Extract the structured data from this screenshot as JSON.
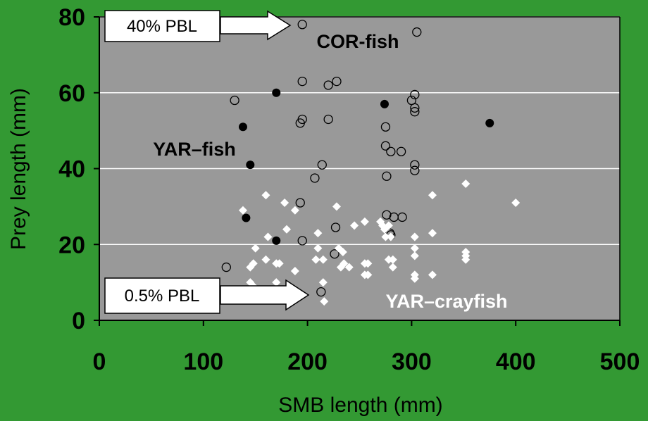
{
  "chart_data": {
    "type": "scatter",
    "xlabel": "SMB length (mm)",
    "ylabel": "Prey length (mm)",
    "xlim": [
      0,
      500
    ],
    "ylim": [
      0,
      80
    ],
    "xticks": [
      "0",
      "100",
      "200",
      "300",
      "400",
      "500"
    ],
    "yticks": [
      "0",
      "20",
      "40",
      "60",
      "80"
    ],
    "grid": true,
    "colors": {
      "figure_background": "#339933",
      "plot_background": "#999999",
      "gridline": "#ffffff",
      "axis": "#000000",
      "open_marker": "#000000",
      "filled_marker": "#000000",
      "diamond_marker": "#ffffff",
      "label_yar_crayfish": "#ffffff"
    },
    "annotations": {
      "cor_fish": "COR-fish",
      "yar_fish": "YAR–fish",
      "yar_crayfish": "YAR–crayfish",
      "pbl_40": "40% PBL",
      "pbl_05": "0.5% PBL"
    },
    "series": [
      {
        "marker": "open-circle",
        "points": [
          [
            195,
            78
          ],
          [
            305,
            76
          ],
          [
            130,
            58
          ],
          [
            195,
            63
          ],
          [
            228,
            63
          ],
          [
            220,
            62
          ],
          [
            195,
            53
          ],
          [
            193,
            52
          ],
          [
            220,
            53
          ],
          [
            300,
            58
          ],
          [
            303,
            59.5
          ],
          [
            303,
            56
          ],
          [
            303,
            55
          ],
          [
            275,
            51
          ],
          [
            275,
            46
          ],
          [
            280,
            44.5
          ],
          [
            290,
            44.5
          ],
          [
            303,
            41
          ],
          [
            303,
            39.5
          ],
          [
            214,
            41
          ],
          [
            207,
            37.5
          ],
          [
            276,
            38
          ],
          [
            193,
            31
          ],
          [
            276,
            27.8
          ],
          [
            283,
            27.2
          ],
          [
            291,
            27.2
          ],
          [
            227,
            24.5
          ],
          [
            279,
            23
          ],
          [
            280,
            22.5
          ],
          [
            195,
            21
          ],
          [
            226,
            17.5
          ],
          [
            122,
            14
          ],
          [
            213,
            7.5
          ]
        ]
      },
      {
        "marker": "filled-circle",
        "points": [
          [
            170,
            60
          ],
          [
            274,
            57
          ],
          [
            375,
            52
          ],
          [
            138,
            51
          ],
          [
            145,
            41
          ],
          [
            141,
            27
          ],
          [
            170,
            21
          ]
        ]
      },
      {
        "marker": "diamond",
        "points": [
          [
            160,
            33
          ],
          [
            320,
            33
          ],
          [
            352,
            36
          ],
          [
            400,
            31
          ],
          [
            138,
            29
          ],
          [
            178,
            31
          ],
          [
            188,
            29
          ],
          [
            228,
            30
          ],
          [
            270,
            26
          ],
          [
            272,
            25
          ],
          [
            274,
            24
          ],
          [
            255,
            26
          ],
          [
            245,
            25
          ],
          [
            278,
            25
          ],
          [
            280,
            22
          ],
          [
            275,
            22
          ],
          [
            303,
            22
          ],
          [
            320,
            23
          ],
          [
            180,
            24
          ],
          [
            162,
            22
          ],
          [
            210,
            23
          ],
          [
            150,
            19
          ],
          [
            210,
            19
          ],
          [
            230,
            19
          ],
          [
            234,
            18
          ],
          [
            303,
            19
          ],
          [
            303,
            17
          ],
          [
            352,
            18
          ],
          [
            352,
            17
          ],
          [
            352,
            16
          ],
          [
            160,
            16
          ],
          [
            170,
            15
          ],
          [
            173,
            15
          ],
          [
            145,
            14
          ],
          [
            148,
            15
          ],
          [
            208,
            16
          ],
          [
            215,
            16
          ],
          [
            232,
            14
          ],
          [
            235,
            15
          ],
          [
            240,
            14
          ],
          [
            255,
            15
          ],
          [
            258,
            15
          ],
          [
            278,
            16
          ],
          [
            282,
            16
          ],
          [
            282,
            14
          ],
          [
            188,
            13
          ],
          [
            255,
            12
          ],
          [
            258,
            12
          ],
          [
            303,
            12
          ],
          [
            303,
            11
          ],
          [
            320,
            12
          ],
          [
            145,
            10
          ],
          [
            148,
            9
          ],
          [
            170,
            10
          ],
          [
            215,
            10
          ],
          [
            216,
            5
          ]
        ]
      }
    ]
  }
}
